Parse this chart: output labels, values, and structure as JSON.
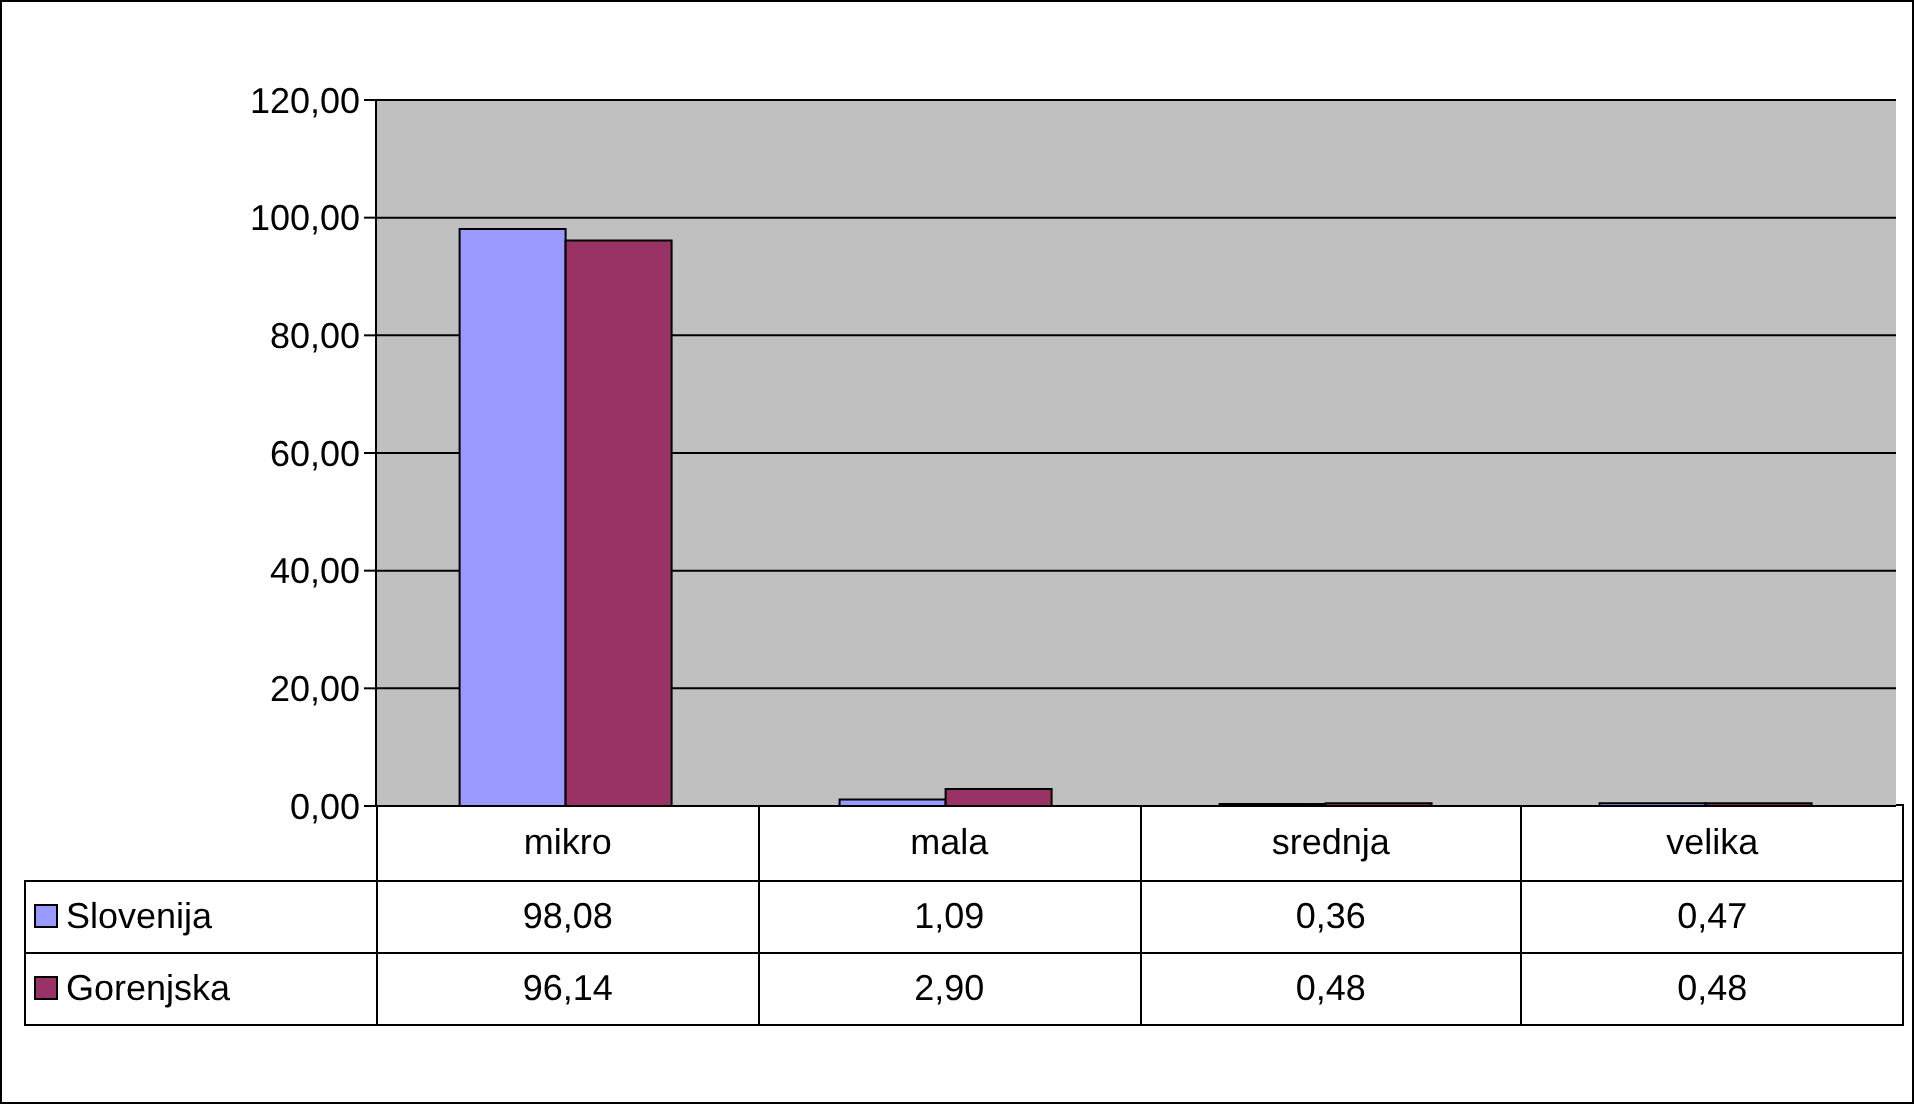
{
  "chart_data": {
    "type": "bar",
    "categories": [
      "mikro",
      "mala",
      "srednja",
      "velika"
    ],
    "series": [
      {
        "name": "Slovenija",
        "color": "#9999ff",
        "values": [
          98.08,
          1.09,
          0.36,
          0.47
        ],
        "value_labels": [
          "98,08",
          "1,09",
          "0,36",
          "0,47"
        ]
      },
      {
        "name": "Gorenjska",
        "color": "#993366",
        "values": [
          96.14,
          2.9,
          0.48,
          0.48
        ],
        "value_labels": [
          "96,14",
          "2,90",
          "0,48",
          "0,48"
        ]
      }
    ],
    "ylim": [
      0,
      120
    ],
    "yticks": [
      {
        "value": 0,
        "label": "0,00"
      },
      {
        "value": 20,
        "label": "20,00"
      },
      {
        "value": 40,
        "label": "40,00"
      },
      {
        "value": 60,
        "label": "60,00"
      },
      {
        "value": 80,
        "label": "80,00"
      },
      {
        "value": 100,
        "label": "100,00"
      },
      {
        "value": 120,
        "label": "120,00"
      }
    ],
    "grid": "y",
    "legend": "bottom left"
  }
}
